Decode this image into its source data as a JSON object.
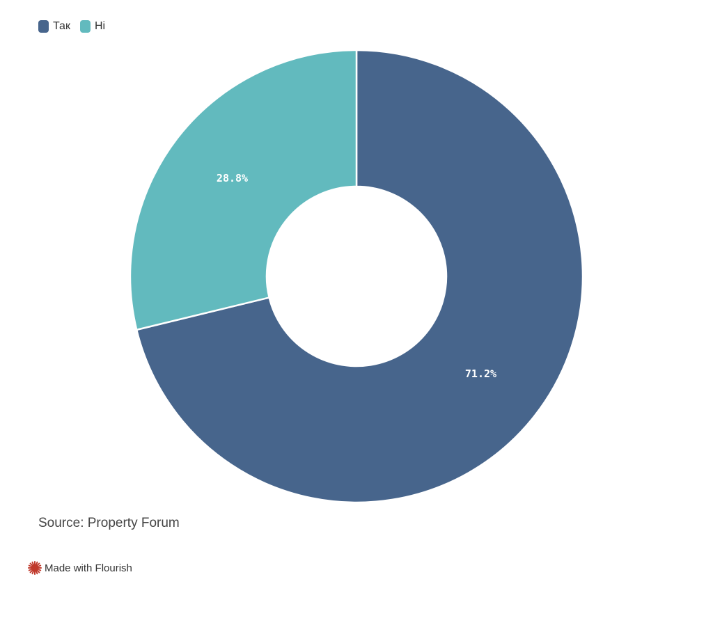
{
  "chart_data": {
    "type": "pie",
    "donut": true,
    "legend_position": "top-left",
    "categories": [
      "Так",
      "Ні"
    ],
    "values": [
      71.2,
      28.8
    ],
    "value_labels": [
      "71.2%",
      "28.8%"
    ],
    "colors": [
      "#47658c",
      "#62babe"
    ]
  },
  "source_text": "Source: Property Forum",
  "credit_text": "Made with Flourish",
  "icons": {
    "credit": "flourish-logo-icon"
  }
}
